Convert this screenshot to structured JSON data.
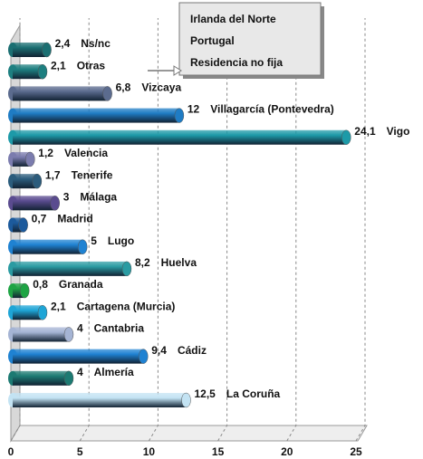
{
  "chart_data": {
    "type": "bar",
    "orientation": "horizontal",
    "categories": [
      "Ns/nc",
      "Otras",
      "Vizcaya",
      "Villagarcía (Pontevedra)",
      "Vigo",
      "Valencia",
      "Tenerife",
      "Málaga",
      "Madrid",
      "Lugo",
      "Huelva",
      "Granada",
      "Cartagena (Murcia)",
      "Cantabria",
      "Cádiz",
      "Almería",
      "La Coruña"
    ],
    "values": [
      2.4,
      2.1,
      6.8,
      12,
      24.1,
      1.2,
      1.7,
      3,
      0.7,
      5,
      8.2,
      0.8,
      2.1,
      4,
      9.4,
      4,
      12.5
    ],
    "value_labels": [
      "2,4",
      "2,1",
      "6,8",
      "12",
      "24,1",
      "1,2",
      "1,7",
      "3",
      "0,7",
      "5",
      "8,2",
      "0,8",
      "2,1",
      "4",
      "9,4",
      "4",
      "12,5"
    ],
    "colors": [
      "#1b6f72",
      "#1d7f80",
      "#5b6b8e",
      "#1f7cc4",
      "#1d9aa8",
      "#7b7cae",
      "#2b5c7c",
      "#5a4b8f",
      "#1c5a9c",
      "#1f82d2",
      "#2a9ba2",
      "#1ea444",
      "#1ea5d6",
      "#a5b4d4",
      "#1f82d2",
      "#1c7a72",
      "#c3e3f3"
    ],
    "xlim": [
      0,
      25
    ],
    "xticks": [
      0,
      5,
      10,
      15,
      20,
      25
    ],
    "grid": true,
    "annotation": [
      "Irlanda del Norte",
      "Portugal",
      "Residencia no fija"
    ]
  }
}
